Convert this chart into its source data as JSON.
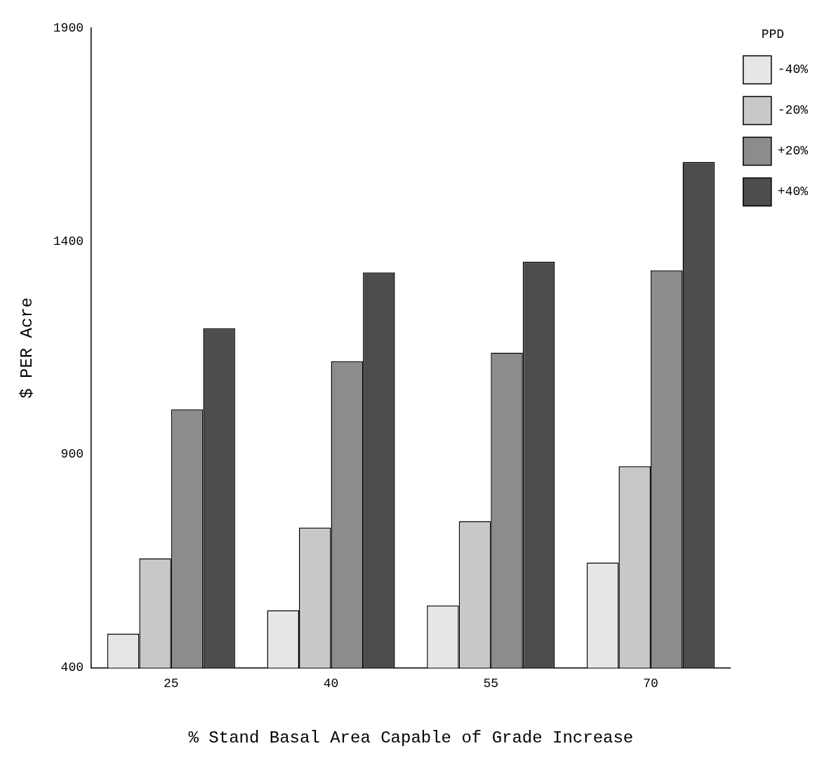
{
  "chart_data": {
    "type": "bar",
    "xlabel": "% Stand Basal Area Capable of Grade Increase",
    "ylabel": "$ PER Acre",
    "legend_title": "PPD",
    "legend": "top right",
    "categories": [
      "25",
      "40",
      "55",
      "70"
    ],
    "series": [
      {
        "name": "-40%",
        "color": "#e6e6e6",
        "values": [
          480,
          535,
          546,
          647
        ]
      },
      {
        "name": "-20%",
        "color": "#c8c8c8",
        "values": [
          657,
          729,
          744,
          873
        ]
      },
      {
        "name": "+20%",
        "color": "#8c8c8c",
        "values": [
          1006,
          1119,
          1139,
          1332
        ]
      },
      {
        "name": "+40%",
        "color": "#4d4d4d",
        "values": [
          1196,
          1327,
          1352,
          1586
        ]
      }
    ],
    "ylim": [
      400,
      1900
    ],
    "yticks": [
      400,
      900,
      1400,
      1900
    ],
    "grid": false
  }
}
